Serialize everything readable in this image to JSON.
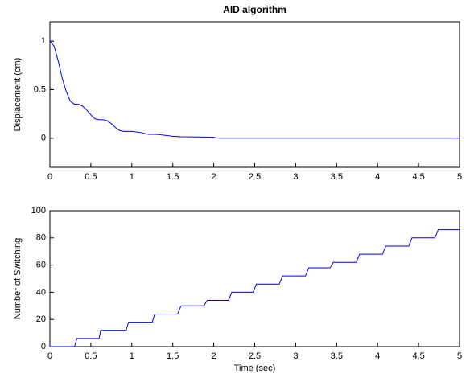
{
  "chart_data": [
    {
      "type": "line",
      "title": "AID algorithm",
      "ylabel": "Displacement (cm)",
      "xlim": [
        0,
        5
      ],
      "xticks": [
        0,
        0.5,
        1,
        1.5,
        2,
        2.5,
        3,
        3.5,
        4,
        4.5,
        5
      ],
      "ylim": [
        -0.3,
        1.2
      ],
      "yticks": [
        0,
        0.5,
        1
      ],
      "x": [
        0,
        0.05,
        0.1,
        0.15,
        0.2,
        0.25,
        0.3,
        0.35,
        0.4,
        0.45,
        0.5,
        0.55,
        0.6,
        0.65,
        0.7,
        0.75,
        0.8,
        0.85,
        0.9,
        1.0,
        1.1,
        1.2,
        1.3,
        1.4,
        1.5,
        1.6,
        2.0,
        2.05,
        5
      ],
      "series": [
        {
          "color": "#0000ff",
          "values": [
            1,
            0.95,
            0.8,
            0.62,
            0.48,
            0.38,
            0.35,
            0.35,
            0.33,
            0.29,
            0.24,
            0.2,
            0.19,
            0.19,
            0.18,
            0.15,
            0.11,
            0.08,
            0.07,
            0.07,
            0.06,
            0.04,
            0.04,
            0.03,
            0.02,
            0.015,
            0.01,
            0,
            0
          ]
        }
      ]
    },
    {
      "type": "line",
      "ylabel": "Number of Switching",
      "xlabel": "Time (sec)",
      "xlim": [
        0,
        5
      ],
      "xticks": [
        0,
        0.5,
        1,
        1.5,
        2,
        2.5,
        3,
        3.5,
        4,
        4.5,
        5
      ],
      "ylim": [
        0,
        100
      ],
      "yticks": [
        0,
        20,
        40,
        60,
        80,
        100
      ],
      "x": [
        0,
        0.3,
        0.33,
        0.6,
        0.62,
        0.93,
        0.96,
        1.25,
        1.28,
        1.56,
        1.6,
        1.88,
        1.92,
        2.18,
        2.22,
        2.48,
        2.52,
        2.8,
        2.84,
        3.12,
        3.16,
        3.42,
        3.46,
        3.74,
        3.78,
        4.06,
        4.1,
        4.38,
        4.42,
        4.7,
        4.74,
        5
      ],
      "series": [
        {
          "color": "#0000ff",
          "values": [
            0,
            0,
            6,
            6,
            12,
            12,
            18,
            18,
            24,
            24,
            30,
            30,
            34,
            34,
            40,
            40,
            46,
            46,
            52,
            52,
            58,
            58,
            62,
            62,
            68,
            68,
            74,
            74,
            80,
            80,
            86,
            86
          ]
        }
      ]
    }
  ]
}
